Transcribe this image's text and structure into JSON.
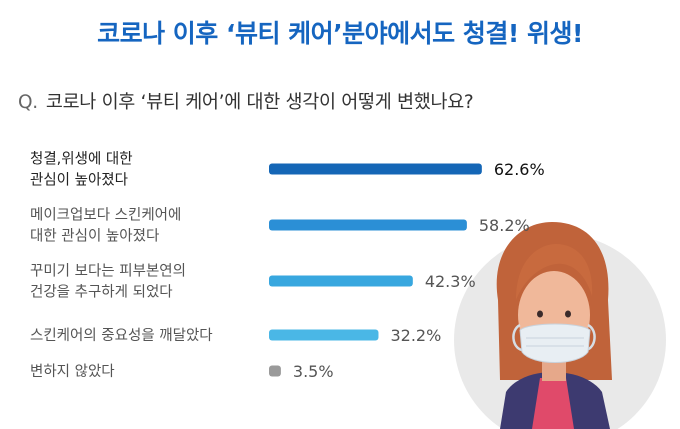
{
  "header": {
    "title": "코로나 이후 ‘뷰티 케어’분야에서도 청결! 위생!",
    "q_prefix": "Q.",
    "question": "코로나 이후 ‘뷰티 케어’에 대한 생각이 어떻게 변했나요?"
  },
  "chart_data": {
    "type": "bar",
    "orientation": "horizontal",
    "categories": [
      [
        "청결,위생에 대한",
        "관심이 높아졌다"
      ],
      [
        "메이크업보다 스킨케어에",
        "대한 관심이 높아졌다"
      ],
      [
        "꾸미기 보다는 피부본연의",
        "건강을 추구하게 되었다"
      ],
      [
        "스킨케어의 중요성을 깨달았다"
      ],
      [
        "변하지 않았다"
      ]
    ],
    "values": [
      62.6,
      58.2,
      42.3,
      32.2,
      3.5
    ],
    "value_labels": [
      "62.6%",
      "58.2%",
      "42.3%",
      "32.2%",
      "3.5%"
    ],
    "bar_colors": [
      "#1466b6",
      "#2b8fd6",
      "#38a7df",
      "#4ab7e6",
      "#9a9a9a"
    ],
    "highlight_index": 0,
    "grid": false,
    "legend": "none"
  },
  "illustration": {
    "subject": "woman-with-face-mask",
    "colors": {
      "hair": "#c86a3e",
      "skin": "#f0b89a",
      "mask": "#e8eef3",
      "jacket": "#3d3a70",
      "shirt": "#e04a6a",
      "circle": "#e9e9e9"
    }
  },
  "colors": {
    "title": "#1565c0",
    "text": "#333333"
  }
}
